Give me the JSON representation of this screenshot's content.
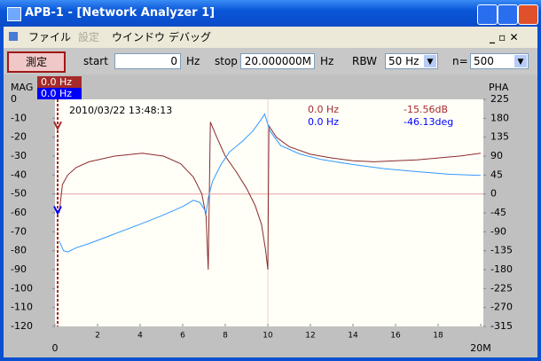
{
  "window": {
    "title": "APB-1 - [Network Analyzer 1]"
  },
  "menu": [
    "ファイル",
    "設定",
    "ウインドウ",
    "デバッグ"
  ],
  "toolbar": {
    "measure_button": "測定",
    "start_label": "start",
    "start_value": "0",
    "start_unit": "Hz",
    "stop_label": "stop",
    "stop_value": "20.000000M",
    "stop_unit": "Hz",
    "rbw_label": "RBW",
    "rbw_value": "50 Hz",
    "n_label": "n=",
    "n_value": "500"
  },
  "chart_data": {
    "type": "line",
    "ylabel": "MAG",
    "y2label": "PHA",
    "timestamp": "2010/03/22 13:48:13",
    "xlim": [
      0,
      20
    ],
    "xticks": [
      0,
      2,
      4,
      6,
      8,
      10,
      12,
      14,
      16,
      18,
      {
        "value": 20,
        "label": "20M"
      }
    ],
    "ylim": [
      -120,
      0
    ],
    "yticks": [
      0,
      -10,
      -20,
      -30,
      -40,
      -50,
      -60,
      -70,
      -80,
      -90,
      -100,
      -110,
      -120
    ],
    "y2lim": [
      -315,
      225
    ],
    "y2ticks": [
      225,
      180,
      135,
      90,
      45,
      0,
      -45,
      -90,
      -135,
      -180,
      -225,
      -270,
      -315
    ],
    "series": [
      {
        "color": "#8b2a2a",
        "x": [
          0.2,
          0.35,
          0.6,
          1.0,
          1.6,
          2.8,
          4.1,
          5.1,
          5.9,
          6.5,
          6.9,
          7.1,
          7.2,
          7.3,
          7.6,
          8.0,
          8.5,
          9.0,
          9.4,
          9.7,
          9.9,
          10.0,
          10.05,
          10.4,
          11.0,
          12.0,
          13.0,
          14.0,
          15.0,
          16.0,
          17.0,
          18.0,
          19.0,
          20.0
        ],
        "values": [
          -60,
          -45,
          -40,
          -36,
          -33,
          -30,
          -28.5,
          -30,
          -34,
          -41,
          -50,
          -62,
          -90,
          -12,
          -20,
          -30,
          -38,
          -47,
          -56,
          -66,
          -80,
          -90,
          -14,
          -20,
          -25,
          -29,
          -31,
          -32.5,
          -33,
          -32.5,
          -32,
          -31,
          -30,
          -28.5
        ]
      },
      {
        "color": "#3399ff",
        "axis": "y2",
        "x": [
          0.2,
          0.4,
          0.6,
          1.0,
          1.6,
          2.8,
          4.0,
          5.0,
          6.0,
          6.5,
          6.8,
          7.0,
          7.1,
          7.2,
          7.4,
          7.8,
          8.2,
          8.8,
          9.3,
          9.7,
          9.85,
          10.1,
          10.6,
          11.5,
          12.5,
          14.0,
          15.5,
          17.0,
          18.5,
          20.0
        ],
        "values": [
          -112,
          -135,
          -138,
          -128,
          -118,
          -95,
          -72,
          -52,
          -30,
          -15,
          -20,
          -35,
          -45,
          -10,
          30,
          70,
          100,
          125,
          150,
          178,
          190,
          150,
          115,
          95,
          82,
          70,
          60,
          53,
          47,
          44
        ]
      }
    ],
    "markers": [
      {
        "label": "0.0 Hz",
        "color": "#a52a2a",
        "readout": {
          "value": -15.56,
          "label": "-15.56dB"
        }
      },
      {
        "label": "0.0 Hz",
        "color": "#0000ff",
        "axis": "y2",
        "readout": {
          "value": -46.13,
          "label": "-46.13deg"
        }
      }
    ]
  }
}
